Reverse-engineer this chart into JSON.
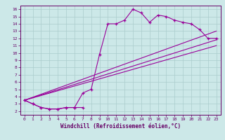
{
  "xlabel": "Windchill (Refroidissement éolien,°C)",
  "bg_color": "#cce8e8",
  "line_color": "#990099",
  "grid_color": "#aacccc",
  "xlim": [
    -0.5,
    23.5
  ],
  "ylim": [
    1.5,
    16.5
  ],
  "xticks": [
    0,
    1,
    2,
    3,
    4,
    5,
    6,
    7,
    8,
    9,
    10,
    11,
    12,
    13,
    14,
    15,
    16,
    17,
    18,
    19,
    20,
    21,
    22,
    23
  ],
  "yticks": [
    2,
    3,
    4,
    5,
    6,
    7,
    8,
    9,
    10,
    11,
    12,
    13,
    14,
    15,
    16
  ],
  "line1_x": [
    0,
    1,
    2,
    3,
    4,
    5,
    6,
    7,
    8,
    9,
    10,
    11,
    12,
    13,
    14,
    15,
    16,
    17,
    18,
    19,
    20,
    21,
    22,
    23
  ],
  "line1_y": [
    3.5,
    3.0,
    2.5,
    2.3,
    2.3,
    2.5,
    2.5,
    4.5,
    5.0,
    9.8,
    14.0,
    14.0,
    14.5,
    16.0,
    15.5,
    14.2,
    15.2,
    15.0,
    14.5,
    14.2,
    14.0,
    13.2,
    12.0,
    12.0
  ],
  "line2_x": [
    0,
    1,
    2,
    3,
    4,
    5,
    6,
    7
  ],
  "line2_y": [
    3.5,
    3.0,
    2.5,
    2.3,
    2.3,
    2.5,
    2.5,
    2.5
  ],
  "trend1_x": [
    0,
    23
  ],
  "trend1_y": [
    3.5,
    13.0
  ],
  "trend2_x": [
    0,
    23
  ],
  "trend2_y": [
    3.5,
    11.8
  ],
  "trend3_x": [
    0,
    23
  ],
  "trend3_y": [
    3.5,
    11.0
  ]
}
